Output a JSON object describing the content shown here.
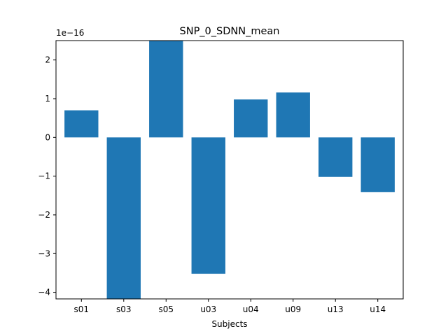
{
  "chart_data": {
    "type": "bar",
    "title": "SNP_0_SDNN_mean",
    "xlabel": "Subjects",
    "ylabel": "",
    "offset_label": "1e−16",
    "categories": [
      "s01",
      "s03",
      "s05",
      "u03",
      "u04",
      "u09",
      "u13",
      "u14"
    ],
    "values": [
      7e-17,
      -4.3e-16,
      2.5e-16,
      -3.52e-16,
      9.8e-17,
      1.16e-16,
      -1.02e-16,
      -1.41e-16
    ],
    "ylim": [
      -4.17e-16,
      2.5e-16
    ],
    "yticks": [
      -4,
      -3,
      -2,
      -1,
      0,
      1,
      2
    ],
    "ytick_labels": [
      "−4",
      "−3",
      "−2",
      "−1",
      "0",
      "1",
      "2"
    ],
    "bar_color": "#1f77b4",
    "grid": false
  }
}
